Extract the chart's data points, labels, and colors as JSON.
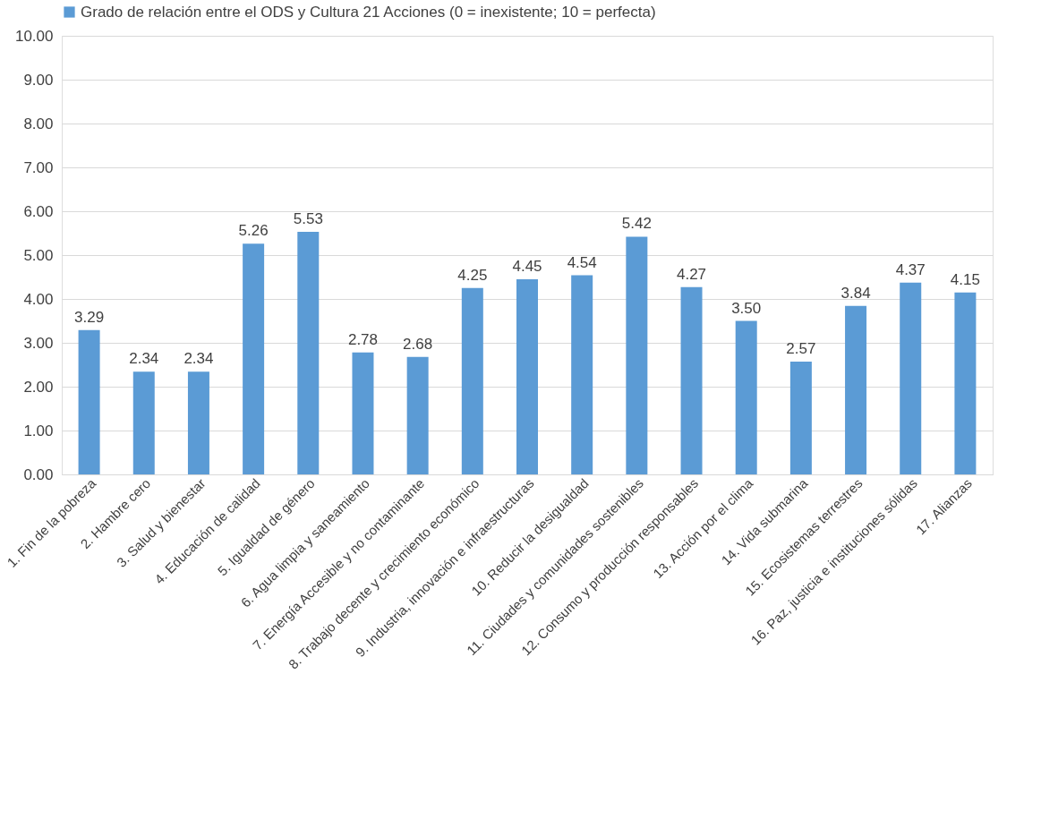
{
  "chart_data": {
    "type": "bar",
    "categories": [
      "1. Fin de la pobreza",
      "2. Hambre cero",
      "3. Salud y bienestar",
      "4. Educación de calidad",
      "5. Igualdad de género",
      "6. Agua limpia y saneamiento",
      "7. Energía Accesible y no contaminante",
      "8. Trabajo decente y crecimiento económico",
      "9. Industria, innovación e infraestructuras",
      "10. Reducir la desigualdad",
      "11. Ciudades y comunidades sostenibles",
      "12. Consumo y producción responsables",
      "13. Acción por el clima",
      "14. Vida submarina",
      "15. Ecosistemas terrestres",
      "16. Paz, justicia e instituciones sólidas",
      "17. Alianzas"
    ],
    "series": [
      {
        "name": "Grado de relación entre el ODS y Cultura 21 Acciones (0 = inexistente; 10 = perfecta)",
        "color": "#5b9bd5",
        "values": [
          3.29,
          2.34,
          2.34,
          5.26,
          5.53,
          2.78,
          2.68,
          4.25,
          4.45,
          4.54,
          5.42,
          4.27,
          3.5,
          2.57,
          3.84,
          4.37,
          4.15
        ],
        "value_labels": [
          "3.29",
          "2.34",
          "2.34",
          "5.26",
          "5.53",
          "2.78",
          "2.68",
          "4.25",
          "4.45",
          "4.54",
          "5.42",
          "4.27",
          "3.50",
          "2.57",
          "3.84",
          "4.37",
          "4.15"
        ]
      }
    ],
    "ylim": [
      0,
      10
    ],
    "yticks": [
      {
        "value": 0,
        "label": "0.00"
      },
      {
        "value": 1,
        "label": "1.00"
      },
      {
        "value": 2,
        "label": "2.00"
      },
      {
        "value": 3,
        "label": "3.00"
      },
      {
        "value": 4,
        "label": "4.00"
      },
      {
        "value": 5,
        "label": "5.00"
      },
      {
        "value": 6,
        "label": "6.00"
      },
      {
        "value": 7,
        "label": "7.00"
      },
      {
        "value": 8,
        "label": "8.00"
      },
      {
        "value": 9,
        "label": "9.00"
      },
      {
        "value": 10,
        "label": "10.00"
      }
    ],
    "grid": "y",
    "legend": "top"
  }
}
